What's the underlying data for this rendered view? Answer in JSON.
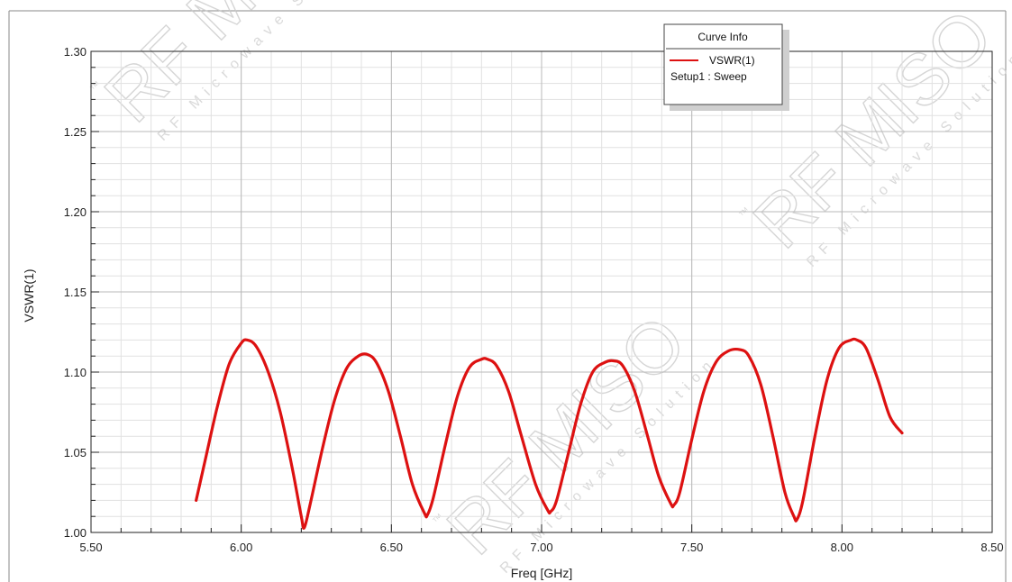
{
  "chart_data": {
    "type": "line",
    "xlabel": "Freq [GHz]",
    "ylabel": "VSWR(1)",
    "xlim": [
      5.5,
      8.5
    ],
    "ylim": [
      1.0,
      1.3
    ],
    "x_ticks": [
      "5.50",
      "6.00",
      "6.50",
      "7.00",
      "7.50",
      "8.00",
      "8.50"
    ],
    "y_ticks": [
      "1.00",
      "1.05",
      "1.10",
      "1.15",
      "1.20",
      "1.25",
      "1.30"
    ],
    "grid": true,
    "legend": {
      "title": "Curve Info",
      "placement": "top-right",
      "entries": [
        {
          "name": "VSWR(1)",
          "subtitle": "Setup1 : Sweep",
          "color": "#dd1111"
        }
      ]
    },
    "series": [
      {
        "name": "VSWR(1)",
        "color": "#dd1111",
        "x": [
          5.85,
          5.88,
          5.92,
          5.96,
          6.0,
          6.02,
          6.05,
          6.09,
          6.13,
          6.17,
          6.2,
          6.21,
          6.23,
          6.27,
          6.31,
          6.35,
          6.39,
          6.42,
          6.45,
          6.49,
          6.53,
          6.57,
          6.61,
          6.62,
          6.64,
          6.68,
          6.72,
          6.76,
          6.8,
          6.82,
          6.85,
          6.89,
          6.93,
          6.98,
          7.02,
          7.03,
          7.05,
          7.09,
          7.13,
          7.17,
          7.21,
          7.24,
          7.27,
          7.31,
          7.35,
          7.39,
          7.43,
          7.44,
          7.46,
          7.5,
          7.54,
          7.58,
          7.62,
          7.66,
          7.69,
          7.73,
          7.77,
          7.81,
          7.84,
          7.85,
          7.87,
          7.91,
          7.95,
          7.99,
          8.03,
          8.05,
          8.08,
          8.12,
          8.16,
          8.2
        ],
        "values": [
          1.02,
          1.045,
          1.078,
          1.105,
          1.118,
          1.12,
          1.116,
          1.1,
          1.075,
          1.04,
          1.01,
          1.003,
          1.018,
          1.052,
          1.082,
          1.102,
          1.11,
          1.111,
          1.106,
          1.088,
          1.06,
          1.03,
          1.012,
          1.011,
          1.022,
          1.055,
          1.085,
          1.103,
          1.108,
          1.108,
          1.104,
          1.088,
          1.062,
          1.03,
          1.014,
          1.013,
          1.02,
          1.05,
          1.08,
          1.1,
          1.106,
          1.107,
          1.104,
          1.088,
          1.062,
          1.035,
          1.018,
          1.017,
          1.025,
          1.058,
          1.088,
          1.106,
          1.113,
          1.114,
          1.11,
          1.092,
          1.06,
          1.025,
          1.01,
          1.008,
          1.02,
          1.06,
          1.095,
          1.115,
          1.12,
          1.12,
          1.115,
          1.095,
          1.072,
          1.062
        ]
      }
    ]
  },
  "watermark": {
    "brand": "RF MISO",
    "tagline": "RF Microwave Solution",
    "tm": "™"
  }
}
